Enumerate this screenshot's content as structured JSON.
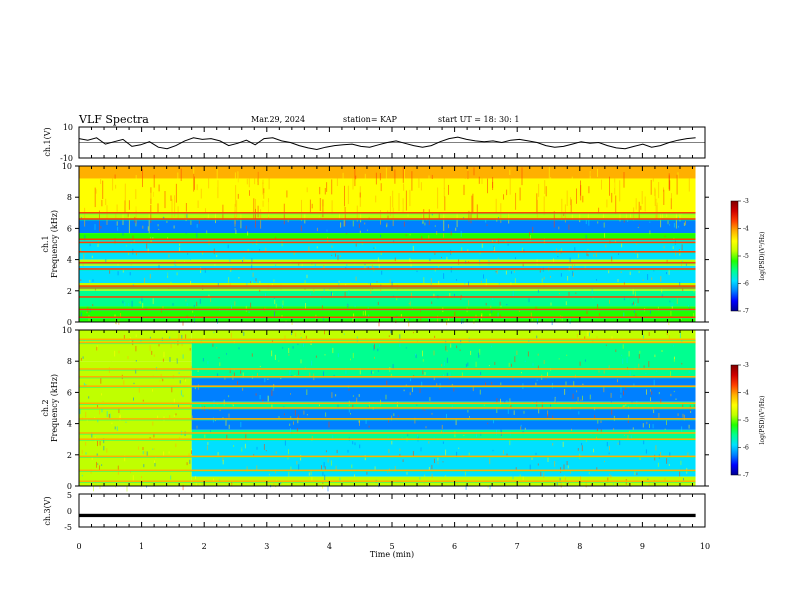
{
  "header": {
    "title": "VLF Spectra",
    "date": "Mar.29, 2024",
    "station": "station= KAP",
    "start_ut": "start  UT  =   18: 30: 1"
  },
  "chart_data": [
    {
      "type": "line",
      "panel": "ch1-waveform",
      "ylabel": "ch.1(V)",
      "ylim": [
        -10,
        10
      ],
      "y_tick_labels": [
        "10",
        "-10"
      ],
      "xlim": [
        0,
        10
      ],
      "x_end": 9.85,
      "series": [
        {
          "values": [
            2.5,
            1.5,
            3.0,
            -1.0,
            0.5,
            2.0,
            -2.5,
            -1.5,
            0.5,
            -3.0,
            -4.0,
            -2.0,
            1.0,
            3.0,
            2.0,
            2.5,
            1.0,
            -2.0,
            -0.5,
            1.5,
            -1.5,
            2.5,
            3.0,
            1.0,
            0.0,
            -2.0,
            -3.5,
            -4.5,
            -3.0,
            -2.0,
            -1.5,
            -1.0,
            -2.5,
            -3.0,
            -1.5,
            0.0,
            1.0,
            -0.5,
            -2.0,
            -3.0,
            -2.0,
            0.5,
            2.5,
            3.5,
            2.0,
            1.0,
            0.5,
            1.0,
            0.0,
            1.5,
            2.0,
            1.0,
            0.0,
            -2.0,
            -3.0,
            -2.5,
            -1.0,
            0.5,
            -0.5,
            0.0,
            -2.0,
            -3.5,
            -4.0,
            -2.5,
            -1.0,
            -3.0,
            -2.0,
            0.0,
            1.5,
            2.5,
            3.0
          ]
        }
      ]
    },
    {
      "type": "heatmap",
      "panel": "ch1-spectrogram",
      "ylabel": "ch.1",
      "ylabel2": "Frequency (kHz)",
      "ylim": [
        0,
        10
      ],
      "y_ticks": [
        0,
        2,
        4,
        6,
        8,
        10
      ],
      "xlim": [
        0,
        10
      ],
      "x_end": 9.85,
      "colorbar": {
        "min": -7,
        "max": -3,
        "ticks": [
          "-3",
          "-4",
          "-5",
          "-6",
          "-7"
        ],
        "label": "log(PSD)(V²/Hz)"
      },
      "bands": [
        {
          "f": [
            9.2,
            10.0
          ],
          "level": -4.2
        },
        {
          "f": [
            7.0,
            9.2
          ],
          "level": -4.5
        },
        {
          "f": [
            6.6,
            7.0
          ],
          "level": -4.8
        },
        {
          "f": [
            5.7,
            6.6
          ],
          "level": -6.2
        },
        {
          "f": [
            5.3,
            5.7
          ],
          "level": -5.2
        },
        {
          "f": [
            4.0,
            5.3
          ],
          "level": -6.0
        },
        {
          "f": [
            3.6,
            4.0
          ],
          "level": -5.0
        },
        {
          "f": [
            2.5,
            3.6
          ],
          "level": -5.8
        },
        {
          "f": [
            2.0,
            2.5
          ],
          "level": -4.8
        },
        {
          "f": [
            1.0,
            2.0
          ],
          "level": -5.6
        },
        {
          "f": [
            0.0,
            1.0
          ],
          "level": -5.2
        }
      ],
      "lines_khz": [
        0.3,
        0.8,
        1.6,
        2.2,
        2.3,
        3.4,
        3.8,
        4.5,
        5.1,
        5.3,
        6.6,
        7.0
      ],
      "line_level": -3.8
    },
    {
      "type": "heatmap",
      "panel": "ch2-spectrogram",
      "ylabel": "ch.2",
      "ylabel2": "Frequency (kHz)",
      "ylim": [
        0,
        10
      ],
      "y_ticks": [
        0,
        2,
        4,
        6,
        8,
        10
      ],
      "xlim": [
        0,
        10
      ],
      "x_end": 9.85,
      "time_change_min": 1.8,
      "colorbar": {
        "min": -7,
        "max": -3,
        "ticks": [
          "-3",
          "-4",
          "-5",
          "-6",
          "-7"
        ],
        "label": "log(PSD)(V²/Hz)"
      },
      "bands_before": [
        {
          "f": [
            8.0,
            10.0
          ],
          "level": -4.8
        },
        {
          "f": [
            0.0,
            8.0
          ],
          "level": -5.0
        }
      ],
      "bands_after": [
        {
          "f": [
            9.2,
            10.0
          ],
          "level": -5.0
        },
        {
          "f": [
            7.0,
            9.2
          ],
          "level": -5.4
        },
        {
          "f": [
            5.4,
            7.0
          ],
          "level": -6.3
        },
        {
          "f": [
            5.0,
            5.4
          ],
          "level": -5.4
        },
        {
          "f": [
            3.6,
            5.0
          ],
          "level": -6.2
        },
        {
          "f": [
            3.0,
            3.6
          ],
          "level": -5.6
        },
        {
          "f": [
            1.8,
            3.0
          ],
          "level": -6.0
        },
        {
          "f": [
            0.6,
            1.8
          ],
          "level": -5.8
        },
        {
          "f": [
            0.0,
            0.6
          ],
          "level": -5.0
        }
      ],
      "lines_khz": [
        0.3,
        1.0,
        1.9,
        3.0,
        3.4,
        4.3,
        5.0,
        5.3,
        6.4,
        7.0,
        7.5,
        9.2,
        9.4
      ],
      "line_level": -4.0
    },
    {
      "type": "line",
      "panel": "ch3-waveform",
      "ylabel": "ch.3(V)",
      "ylim": [
        -5,
        5
      ],
      "y_tick_labels": [
        "5",
        "0",
        "-5"
      ],
      "xlim": [
        0,
        10
      ],
      "x_end": 9.85,
      "series": [
        {
          "values": [
            -1.4,
            -1.4
          ]
        }
      ],
      "band_v": [
        -2.0,
        -1.0
      ]
    }
  ],
  "xaxis": {
    "label": "Time (min)",
    "ticks": [
      "0",
      "1",
      "2",
      "3",
      "4",
      "5",
      "6",
      "7",
      "8",
      "9",
      "10"
    ]
  },
  "colors": {
    "colormap": [
      "#000090",
      "#0000ff",
      "#0080ff",
      "#00e0ff",
      "#00ff90",
      "#20ff00",
      "#c0ff00",
      "#ffff00",
      "#ffb000",
      "#ff4000",
      "#d00000",
      "#800000"
    ]
  }
}
